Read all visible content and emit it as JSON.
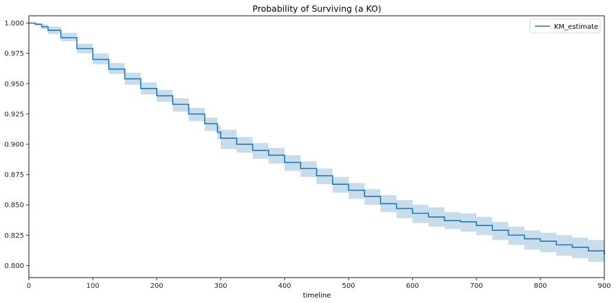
{
  "chart_data": {
    "type": "line",
    "title": "Probability of Surviving (a KO)",
    "xlabel": "timeline",
    "ylabel": "",
    "xlim": [
      0,
      900
    ],
    "ylim": [
      0.79,
      1.006
    ],
    "x_ticks": [
      0,
      100,
      200,
      300,
      400,
      500,
      600,
      700,
      800,
      900
    ],
    "y_ticks": [
      0.8,
      0.825,
      0.85,
      0.875,
      0.9,
      0.925,
      0.95,
      0.975,
      1.0
    ],
    "x_tick_labels": [
      "0",
      "100",
      "200",
      "300",
      "400",
      "500",
      "600",
      "700",
      "800",
      "900"
    ],
    "y_tick_labels": [
      "0.800",
      "0.825",
      "0.850",
      "0.875",
      "0.900",
      "0.925",
      "0.950",
      "0.975",
      "1.000"
    ],
    "grid": false,
    "legend_position": "top-right",
    "series": [
      {
        "name": "KM_estimate",
        "color": "#1f77b4",
        "band_color": "#1f77b4",
        "x": [
          0,
          10,
          20,
          30,
          50,
          75,
          100,
          125,
          150,
          175,
          200,
          225,
          250,
          275,
          295,
          300,
          325,
          350,
          375,
          400,
          425,
          450,
          475,
          500,
          525,
          550,
          575,
          600,
          625,
          650,
          675,
          700,
          725,
          750,
          775,
          800,
          825,
          850,
          875,
          900
        ],
        "y": [
          1.0,
          0.999,
          0.997,
          0.994,
          0.988,
          0.979,
          0.97,
          0.962,
          0.954,
          0.946,
          0.94,
          0.933,
          0.925,
          0.917,
          0.91,
          0.905,
          0.9,
          0.895,
          0.891,
          0.885,
          0.88,
          0.874,
          0.867,
          0.862,
          0.857,
          0.851,
          0.847,
          0.843,
          0.84,
          0.837,
          0.836,
          0.833,
          0.829,
          0.825,
          0.822,
          0.82,
          0.817,
          0.815,
          0.812,
          0.809
        ],
        "lower": [
          1.0,
          0.998,
          0.995,
          0.991,
          0.985,
          0.975,
          0.966,
          0.958,
          0.949,
          0.941,
          0.935,
          0.927,
          0.919,
          0.911,
          0.904,
          0.896,
          0.893,
          0.888,
          0.884,
          0.878,
          0.873,
          0.867,
          0.86,
          0.855,
          0.85,
          0.844,
          0.839,
          0.835,
          0.832,
          0.83,
          0.828,
          0.825,
          0.821,
          0.817,
          0.813,
          0.811,
          0.808,
          0.806,
          0.803,
          0.8
        ],
        "upper": [
          1.0,
          1.0,
          0.999,
          0.997,
          0.992,
          0.983,
          0.975,
          0.967,
          0.959,
          0.951,
          0.945,
          0.938,
          0.93,
          0.922,
          0.915,
          0.912,
          0.906,
          0.901,
          0.897,
          0.891,
          0.886,
          0.88,
          0.873,
          0.868,
          0.863,
          0.858,
          0.854,
          0.85,
          0.848,
          0.844,
          0.843,
          0.84,
          0.836,
          0.832,
          0.829,
          0.827,
          0.825,
          0.823,
          0.821,
          0.818
        ]
      }
    ]
  }
}
